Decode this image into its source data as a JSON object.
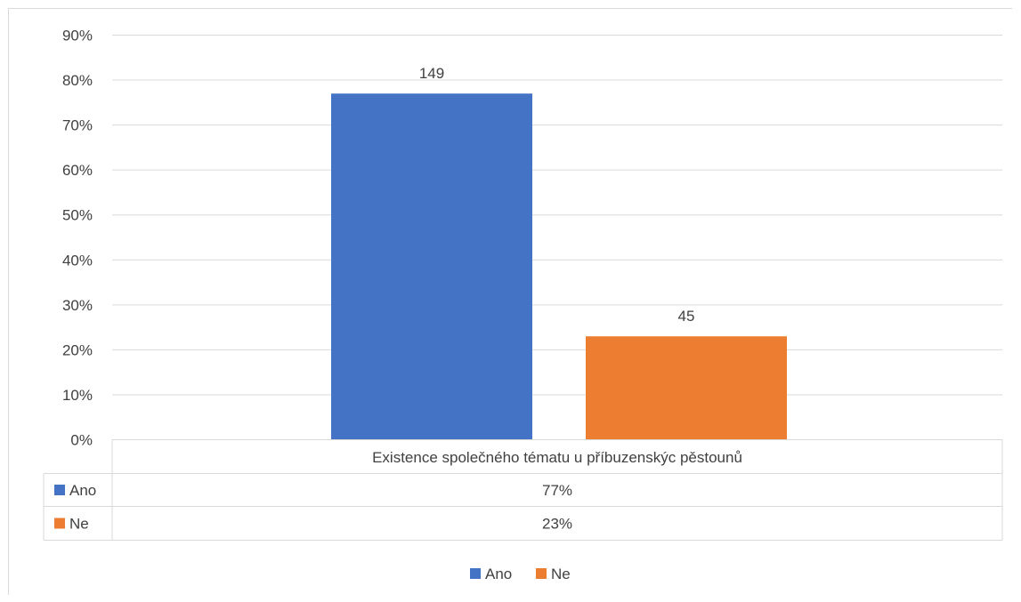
{
  "chart_data": {
    "type": "bar",
    "categories": [
      "Existence společného tématu u příbuzenskýc pěstounů"
    ],
    "series": [
      {
        "name": "Ano",
        "values": [
          77
        ],
        "data_label": "149",
        "color": "#4472c4",
        "table_value": "77%"
      },
      {
        "name": "Ne",
        "values": [
          23
        ],
        "data_label": "45",
        "color": "#ed7d31",
        "table_value": "23%"
      }
    ],
    "ylim": [
      0,
      90
    ],
    "y_ticks": [
      "0%",
      "10%",
      "20%",
      "30%",
      "40%",
      "50%",
      "60%",
      "70%",
      "80%",
      "90%"
    ],
    "grid": true,
    "legend": "bottom",
    "data_table": true
  }
}
